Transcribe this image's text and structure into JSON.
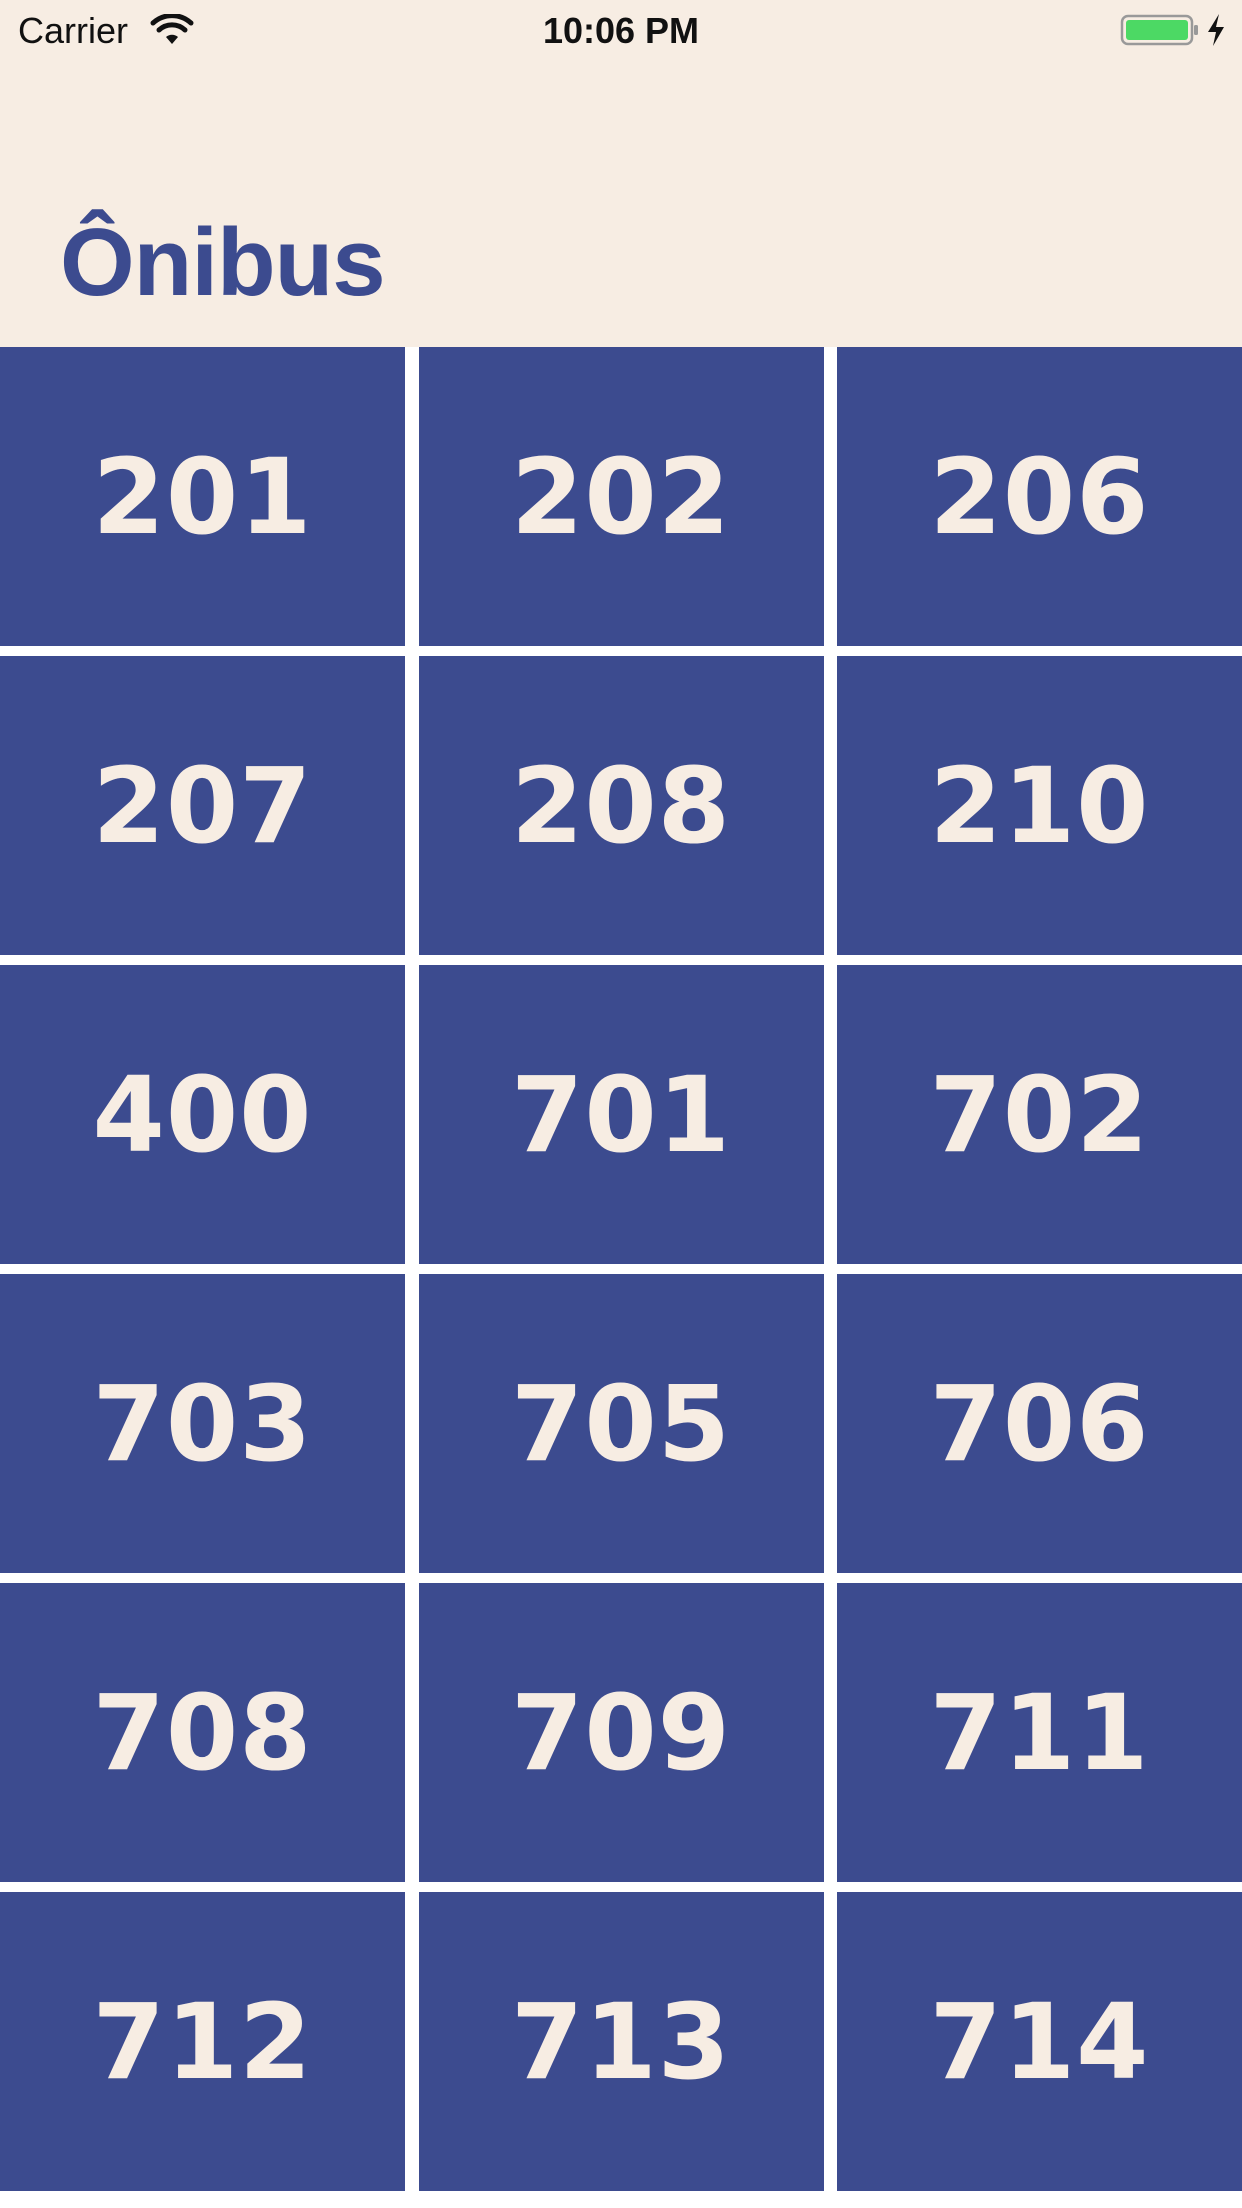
{
  "status_bar": {
    "carrier": "Carrier",
    "time": "10:06 PM",
    "battery_color": "#4cd964"
  },
  "header": {
    "title": "Ônibus"
  },
  "colors": {
    "header_bg": "#f7ede3",
    "tile_bg": "#3c4b8f",
    "tile_text": "#f7ede3",
    "title_text": "#3c4b8f"
  },
  "bus_lines": [
    "201",
    "202",
    "206",
    "207",
    "208",
    "210",
    "400",
    "701",
    "702",
    "703",
    "705",
    "706",
    "708",
    "709",
    "711",
    "712",
    "713",
    "714"
  ]
}
